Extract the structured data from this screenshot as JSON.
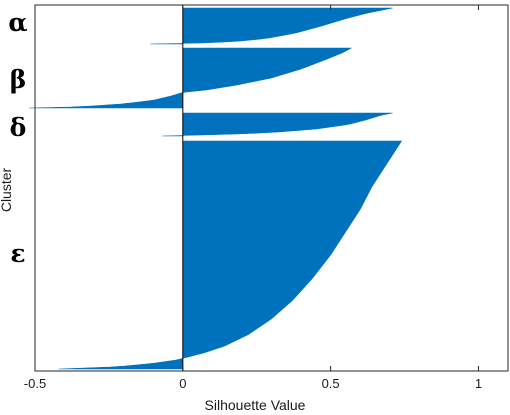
{
  "chart_data": {
    "type": "bar",
    "orientation": "horizontal",
    "xlabel": "Silhouette Value",
    "ylabel": "Cluster",
    "xlim": [
      -0.5,
      1.1
    ],
    "x_ticks": [
      -0.5,
      0,
      0.5,
      1
    ],
    "x_tick_labels": [
      "-0.5",
      "0",
      "0.5",
      "1"
    ],
    "bar_color": "#0072BD",
    "grid": false,
    "clusters": [
      {
        "name": "α",
        "silhouette_profile": [
          [
            0.0,
            0.71
          ],
          [
            0.05,
            0.68
          ],
          [
            0.15,
            0.62
          ],
          [
            0.3,
            0.55
          ],
          [
            0.5,
            0.47
          ],
          [
            0.7,
            0.38
          ],
          [
            0.85,
            0.28
          ],
          [
            0.93,
            0.18
          ],
          [
            0.97,
            0.08
          ],
          [
            0.985,
            -0.02
          ],
          [
            1.0,
            -0.11
          ]
        ]
      },
      {
        "name": "β",
        "silhouette_profile": [
          [
            0.0,
            0.57
          ],
          [
            0.08,
            0.54
          ],
          [
            0.2,
            0.48
          ],
          [
            0.35,
            0.4
          ],
          [
            0.5,
            0.3
          ],
          [
            0.62,
            0.18
          ],
          [
            0.7,
            0.08
          ],
          [
            0.74,
            0.0
          ],
          [
            0.8,
            -0.04
          ],
          [
            0.87,
            -0.1
          ],
          [
            0.93,
            -0.2
          ],
          [
            0.98,
            -0.35
          ],
          [
            1.0,
            -0.52
          ]
        ]
      },
      {
        "name": "δ",
        "silhouette_profile": [
          [
            0.0,
            0.71
          ],
          [
            0.1,
            0.67
          ],
          [
            0.3,
            0.62
          ],
          [
            0.5,
            0.56
          ],
          [
            0.7,
            0.45
          ],
          [
            0.85,
            0.3
          ],
          [
            0.93,
            0.15
          ],
          [
            0.97,
            0.02
          ],
          [
            0.99,
            -0.04
          ],
          [
            1.0,
            -0.07
          ]
        ]
      },
      {
        "name": "ε",
        "silhouette_profile": [
          [
            0.0,
            0.74
          ],
          [
            0.04,
            0.72
          ],
          [
            0.1,
            0.69
          ],
          [
            0.2,
            0.64
          ],
          [
            0.3,
            0.6
          ],
          [
            0.4,
            0.55
          ],
          [
            0.5,
            0.5
          ],
          [
            0.6,
            0.44
          ],
          [
            0.7,
            0.37
          ],
          [
            0.78,
            0.3
          ],
          [
            0.85,
            0.22
          ],
          [
            0.9,
            0.14
          ],
          [
            0.93,
            0.07
          ],
          [
            0.95,
            0.01
          ],
          [
            0.96,
            -0.02
          ],
          [
            0.975,
            -0.1
          ],
          [
            0.99,
            -0.22
          ],
          [
            1.0,
            -0.42
          ]
        ]
      }
    ]
  }
}
